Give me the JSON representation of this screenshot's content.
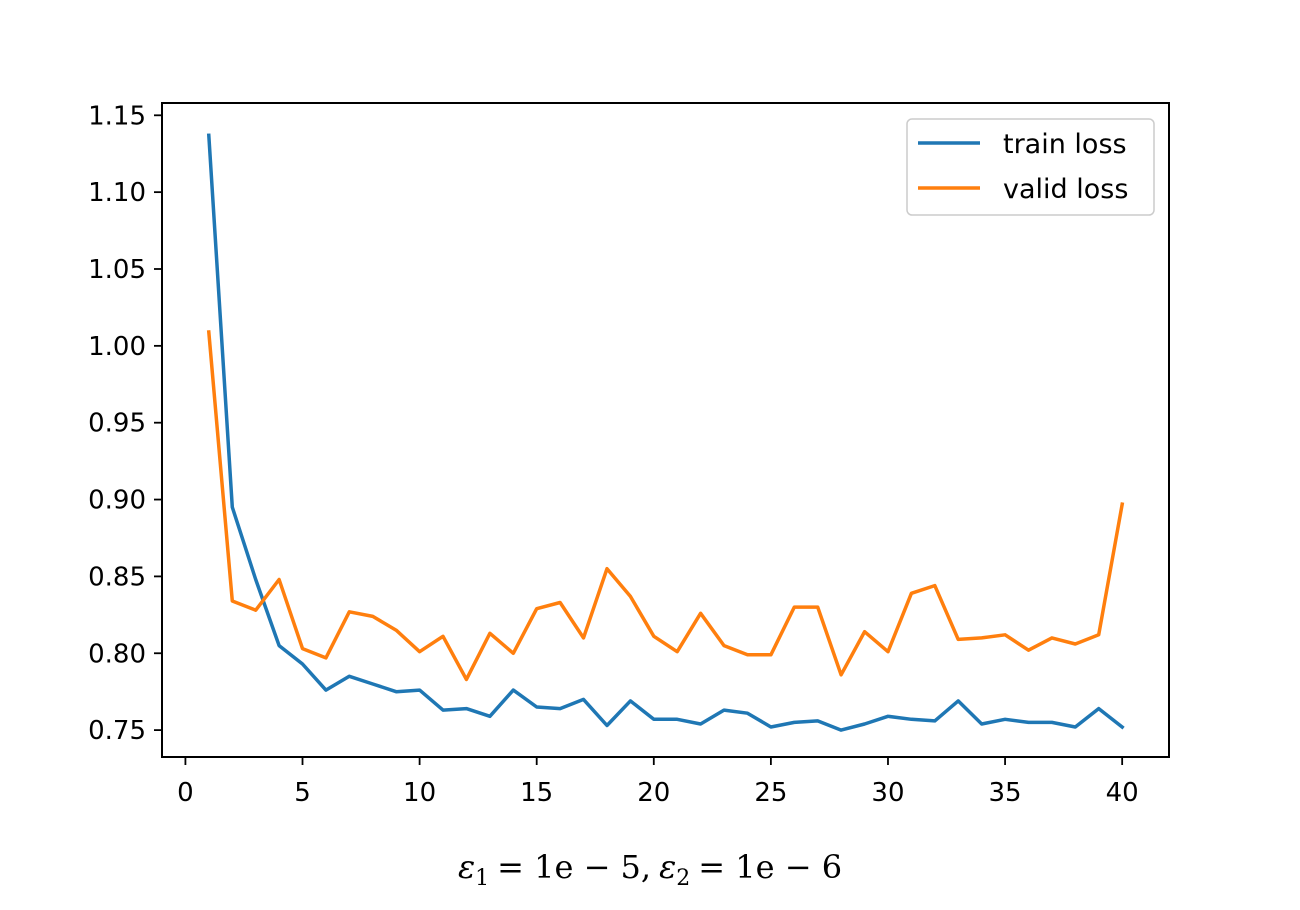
{
  "chart_data": {
    "type": "line",
    "title": "",
    "xlabel": "",
    "ylabel": "",
    "xlim": [
      -1,
      42
    ],
    "ylim": [
      0.7325,
      1.158
    ],
    "xticks": [
      0,
      5,
      10,
      15,
      20,
      25,
      30,
      35,
      40
    ],
    "yticks": [
      0.75,
      0.8,
      0.85,
      0.9,
      0.95,
      1.0,
      1.05,
      1.1,
      1.15
    ],
    "grid": false,
    "legend_position": "top-right",
    "caption": {
      "eps1_symbol": "ε",
      "eps1_sub": "1",
      "eps1_value": "= 1e − 5,",
      "eps2_symbol": "ε",
      "eps2_sub": "2",
      "eps2_value": "= 1e − 6"
    },
    "x": [
      1,
      2,
      3,
      4,
      5,
      6,
      7,
      8,
      9,
      10,
      11,
      12,
      13,
      14,
      15,
      16,
      17,
      18,
      19,
      20,
      21,
      22,
      23,
      24,
      25,
      26,
      27,
      28,
      29,
      30,
      31,
      32,
      33,
      34,
      35,
      36,
      37,
      38,
      39,
      40
    ],
    "series": [
      {
        "name": "train loss",
        "color": "#1f77b4",
        "values": [
          1.137,
          0.895,
          0.848,
          0.805,
          0.793,
          0.776,
          0.785,
          0.78,
          0.775,
          0.776,
          0.763,
          0.764,
          0.759,
          0.776,
          0.765,
          0.764,
          0.77,
          0.753,
          0.769,
          0.757,
          0.757,
          0.754,
          0.763,
          0.761,
          0.752,
          0.755,
          0.756,
          0.75,
          0.754,
          0.759,
          0.757,
          0.756,
          0.769,
          0.754,
          0.757,
          0.755,
          0.755,
          0.752,
          0.764,
          0.752
        ]
      },
      {
        "name": "valid loss",
        "color": "#ff7f0e",
        "values": [
          1.009,
          0.834,
          0.828,
          0.848,
          0.803,
          0.797,
          0.827,
          0.824,
          0.815,
          0.801,
          0.811,
          0.783,
          0.813,
          0.8,
          0.829,
          0.833,
          0.81,
          0.855,
          0.837,
          0.811,
          0.801,
          0.826,
          0.805,
          0.799,
          0.799,
          0.83,
          0.83,
          0.786,
          0.814,
          0.801,
          0.839,
          0.844,
          0.809,
          0.81,
          0.812,
          0.802,
          0.81,
          0.806,
          0.812,
          0.897
        ]
      }
    ]
  }
}
